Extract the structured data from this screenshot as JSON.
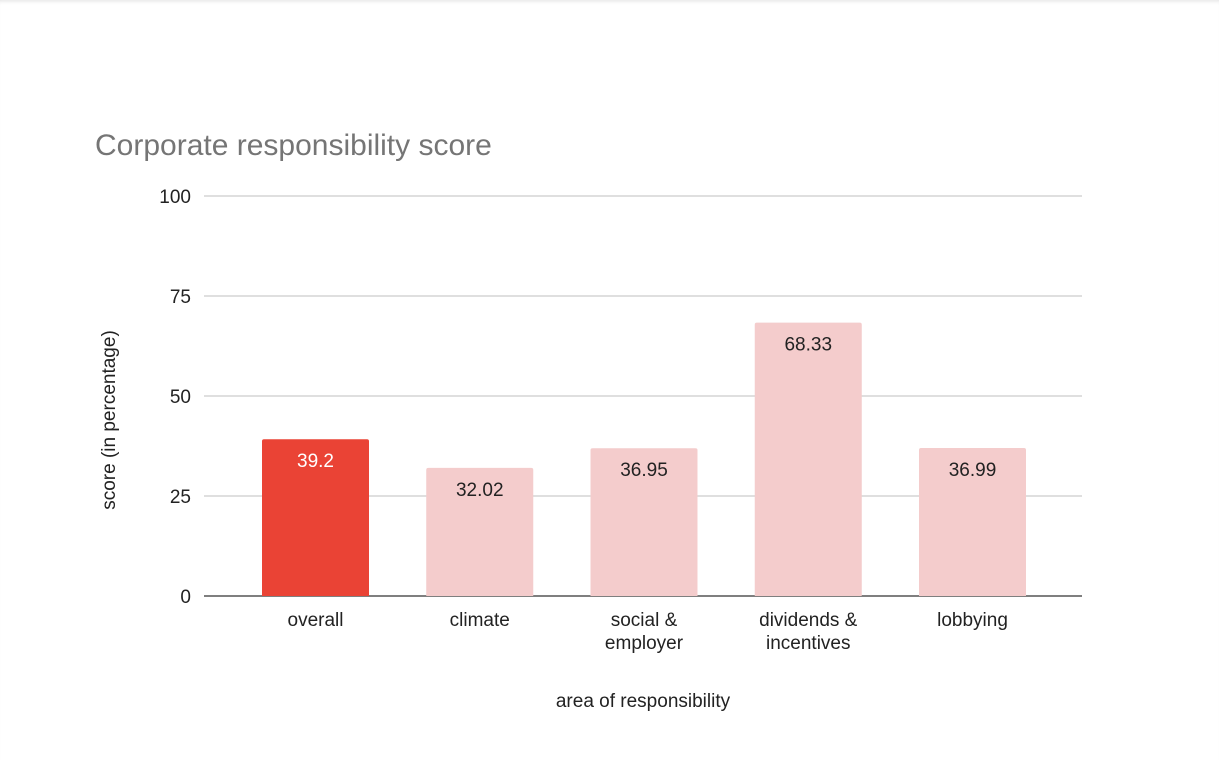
{
  "chart_data": {
    "type": "bar",
    "title": "Corporate responsibility score",
    "xlabel": "area of responsibility",
    "ylabel": "score (in percentage)",
    "categories": [
      [
        "overall"
      ],
      [
        "climate"
      ],
      [
        "social &",
        "employer"
      ],
      [
        "dividends &",
        "incentives"
      ],
      [
        "lobbying"
      ]
    ],
    "values": [
      39.2,
      32.02,
      36.95,
      68.33,
      36.99
    ],
    "data_labels": [
      "39.2",
      "32.02",
      "36.95",
      "68.33",
      "36.99"
    ],
    "bar_colors": [
      "#EA4335",
      "#F4CCCC",
      "#F4CCCC",
      "#F4CCCC",
      "#F4CCCC"
    ],
    "label_colors": [
      "#FFFFFF",
      "#222222",
      "#222222",
      "#222222",
      "#222222"
    ],
    "ylim": [
      0,
      100
    ],
    "yticks": [
      0,
      25,
      50,
      75,
      100
    ],
    "grid": true,
    "legend": "none"
  }
}
